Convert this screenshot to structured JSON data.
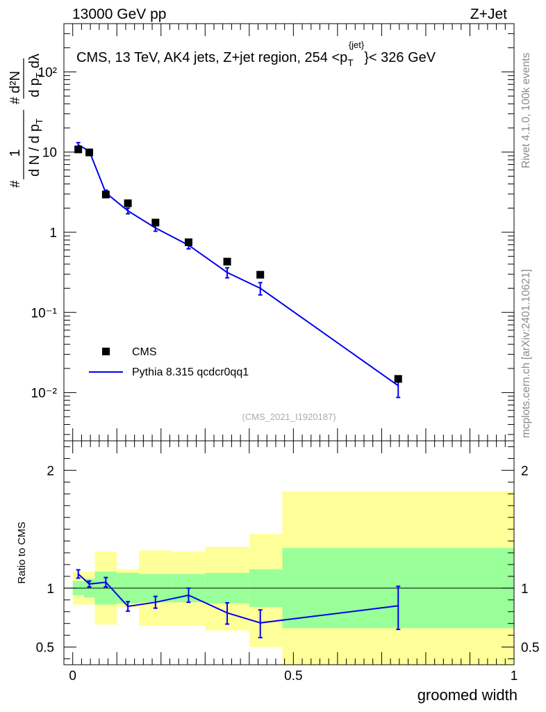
{
  "header": {
    "left": "13000 GeV pp",
    "right": "Z+Jet"
  },
  "side_labels": {
    "rivet": "Rivet 4.1.0,  100k events",
    "mcplots": "mcplots.cern.ch [arXiv:2401.10621]"
  },
  "chart_data": [
    {
      "type": "scatter",
      "panel": "main",
      "title": "CMS, 13 TeV, AK4 jets, Z+jet region, 254 <p_T^{jet}< 326 GeV",
      "title_parts": {
        "prefix": "CMS, 13 TeV, AK4 jets, Z+jet region, 254 <p",
        "sub": "T",
        "sup": "{jet}",
        "suffix": "}< 326 GeV"
      },
      "analysis_id": "(CMS_2021_I1920187)",
      "ylabel": "1/N dN/dp_T d^2N/dp_T dλ",
      "ylabel_parts": {
        "num1": "1",
        "den1": "d N / d p",
        "num2": "d²N",
        "den2": "d p",
        "lam": "dλ",
        "hash": "#",
        "sub": "T"
      },
      "yscale": "log",
      "ylim": [
        0.0025,
        400
      ],
      "xlim": [
        -0.02,
        1.0
      ],
      "ytick_labels": [
        "10⁻²",
        "10⁻¹",
        "1",
        "10",
        "10²"
      ],
      "ytick_values": [
        0.01,
        0.1,
        1,
        10,
        100
      ],
      "legend": [
        "CMS",
        "Pythia 8.315 qcdcr0qq1"
      ],
      "legend_position": "lower-left",
      "series": [
        {
          "name": "CMS",
          "style": "square-marker",
          "color": "#000000",
          "x": [
            0.0125,
            0.0375,
            0.075,
            0.125,
            0.1875,
            0.2625,
            0.35,
            0.425,
            0.7375
          ],
          "y": [
            10.8,
            9.9,
            2.95,
            2.3,
            1.32,
            0.75,
            0.43,
            0.295,
            0.0148
          ]
        },
        {
          "name": "Pythia 8.315 qcdcr0qq1",
          "style": "line",
          "color": "#0000ee",
          "x": [
            0.0125,
            0.0375,
            0.075,
            0.125,
            0.1875,
            0.2625,
            0.35,
            0.425,
            0.7375
          ],
          "y": [
            12.3,
            10.3,
            3.1,
            1.85,
            1.13,
            0.69,
            0.315,
            0.2,
            0.0122
          ],
          "yerr_low": [
            0.8,
            0.5,
            0.25,
            0.15,
            0.1,
            0.07,
            0.045,
            0.035,
            0.0035
          ],
          "yerr_high": [
            0.8,
            0.5,
            0.25,
            0.15,
            0.1,
            0.07,
            0.045,
            0.035,
            0.0025
          ]
        }
      ]
    },
    {
      "type": "line",
      "panel": "ratio",
      "ylabel": "Ratio to CMS",
      "xlabel": "groomed width",
      "ylim": [
        0.35,
        2.25
      ],
      "xlim": [
        -0.02,
        1.0
      ],
      "xtick_values": [
        0,
        0.5,
        1
      ],
      "xtick_labels": [
        "0",
        "0.5",
        "1"
      ],
      "ytick_values": [
        0.5,
        1,
        2
      ],
      "ytick_labels": [
        "0.5",
        "1",
        "2"
      ],
      "reference_line": 1,
      "bins": [
        0,
        0.025,
        0.05,
        0.1,
        0.15,
        0.225,
        0.3,
        0.4,
        0.475,
        1.0
      ],
      "band_stat": {
        "color": "#99ff99",
        "low": [
          0.94,
          0.92,
          0.86,
          0.87,
          0.88,
          0.88,
          0.87,
          0.84,
          0.66
        ],
        "high": [
          1.06,
          1.08,
          1.14,
          1.13,
          1.12,
          1.12,
          1.13,
          1.16,
          1.34
        ]
      },
      "band_total": {
        "color": "#ffff99",
        "low": [
          0.86,
          0.86,
          0.69,
          0.84,
          0.68,
          0.68,
          0.64,
          0.5,
          0.18
        ],
        "high": [
          1.14,
          1.14,
          1.31,
          1.16,
          1.32,
          1.31,
          1.35,
          1.46,
          1.82
        ]
      },
      "series": [
        {
          "name": "Pythia 8.315 qcdcr0qq1",
          "color": "#0000ee",
          "x": [
            0.0125,
            0.0375,
            0.075,
            0.125,
            0.1875,
            0.2625,
            0.35,
            0.425,
            0.7375
          ],
          "y": [
            1.12,
            1.035,
            1.05,
            0.845,
            0.88,
            0.94,
            0.79,
            0.705,
            0.85
          ],
          "yerr_low": [
            0.035,
            0.025,
            0.04,
            0.04,
            0.05,
            0.06,
            0.095,
            0.125,
            0.2
          ],
          "yerr_high": [
            0.035,
            0.025,
            0.04,
            0.04,
            0.05,
            0.06,
            0.085,
            0.11,
            0.165
          ]
        }
      ]
    }
  ]
}
